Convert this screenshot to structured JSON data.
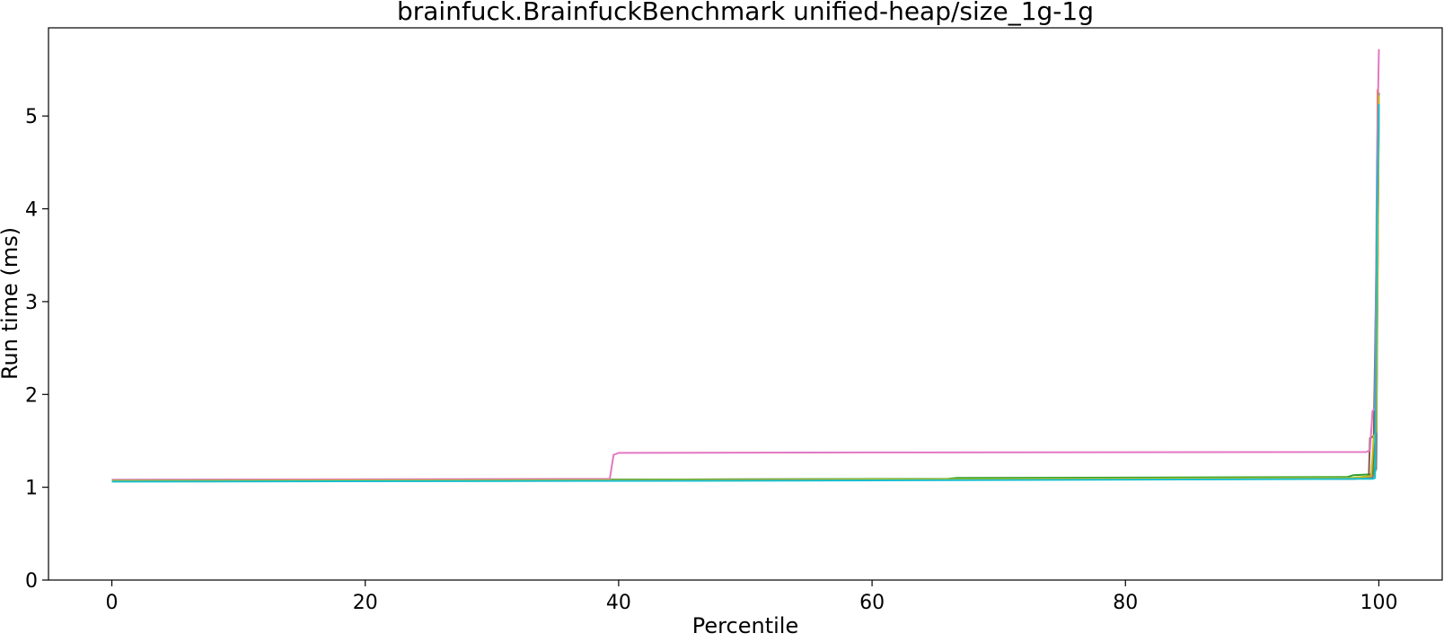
{
  "chart_data": {
    "type": "line",
    "title": "brainfuck.BrainfuckBenchmark unified-heap/size_1g-1g",
    "xlabel": "Percentile",
    "ylabel": "Run time (ms)",
    "xlim": [
      -5,
      105
    ],
    "ylim": [
      0,
      5.95
    ],
    "xticks": [
      0,
      20,
      40,
      60,
      80,
      100
    ],
    "yticks": [
      0,
      1,
      2,
      3,
      4,
      5
    ],
    "grid": false,
    "legend": "none",
    "series": [
      {
        "color": "#1f77b4",
        "x": [
          0,
          50,
          97,
          99.5,
          99.8,
          99.9,
          100
        ],
        "y": [
          1.08,
          1.085,
          1.09,
          1.1,
          1.3,
          4.5,
          5.2
        ]
      },
      {
        "color": "#ff7f0e",
        "x": [
          0,
          50,
          98,
          99.5,
          99.7,
          99.85,
          99.9,
          100
        ],
        "y": [
          1.07,
          1.08,
          1.1,
          1.12,
          1.5,
          3.5,
          5.28,
          5.17
        ]
      },
      {
        "color": "#2ca02c",
        "x": [
          0,
          66,
          66.7,
          97.5,
          98,
          99.5,
          99.7,
          99.9,
          100
        ],
        "y": [
          1.07,
          1.09,
          1.1,
          1.11,
          1.13,
          1.14,
          1.6,
          4.8,
          5.25
        ]
      },
      {
        "color": "#d62728",
        "x": [
          0,
          50,
          98,
          99.4,
          99.6,
          99.8,
          100
        ],
        "y": [
          1.07,
          1.08,
          1.09,
          1.1,
          1.45,
          1.5,
          5.2
        ]
      },
      {
        "color": "#8c564b",
        "x": [
          0,
          50,
          98,
          99.2,
          99.3,
          99.6,
          99.85,
          100
        ],
        "y": [
          1.07,
          1.08,
          1.09,
          1.1,
          1.53,
          1.55,
          3.8,
          5.15
        ]
      },
      {
        "color": "#e377c2",
        "x": [
          0,
          39.3,
          39.6,
          40,
          60,
          99,
          99.3,
          99.5,
          99.7,
          99.85,
          100
        ],
        "y": [
          1.08,
          1.09,
          1.35,
          1.37,
          1.375,
          1.38,
          1.4,
          1.82,
          1.85,
          4.5,
          5.72
        ]
      },
      {
        "color": "#7f7f7f",
        "x": [
          0,
          50,
          98,
          99.5,
          99.8,
          100
        ],
        "y": [
          1.07,
          1.08,
          1.09,
          1.1,
          1.2,
          5.1
        ]
      },
      {
        "color": "#bcbd22",
        "x": [
          0,
          50,
          98,
          99.4,
          99.6,
          99.8,
          100
        ],
        "y": [
          1.07,
          1.08,
          1.1,
          1.12,
          1.55,
          1.6,
          5.22
        ]
      },
      {
        "color": "#17becf",
        "x": [
          0,
          50,
          99.5,
          99.7,
          99.85,
          100
        ],
        "y": [
          1.06,
          1.07,
          1.09,
          1.1,
          3.9,
          5.13
        ]
      }
    ]
  }
}
